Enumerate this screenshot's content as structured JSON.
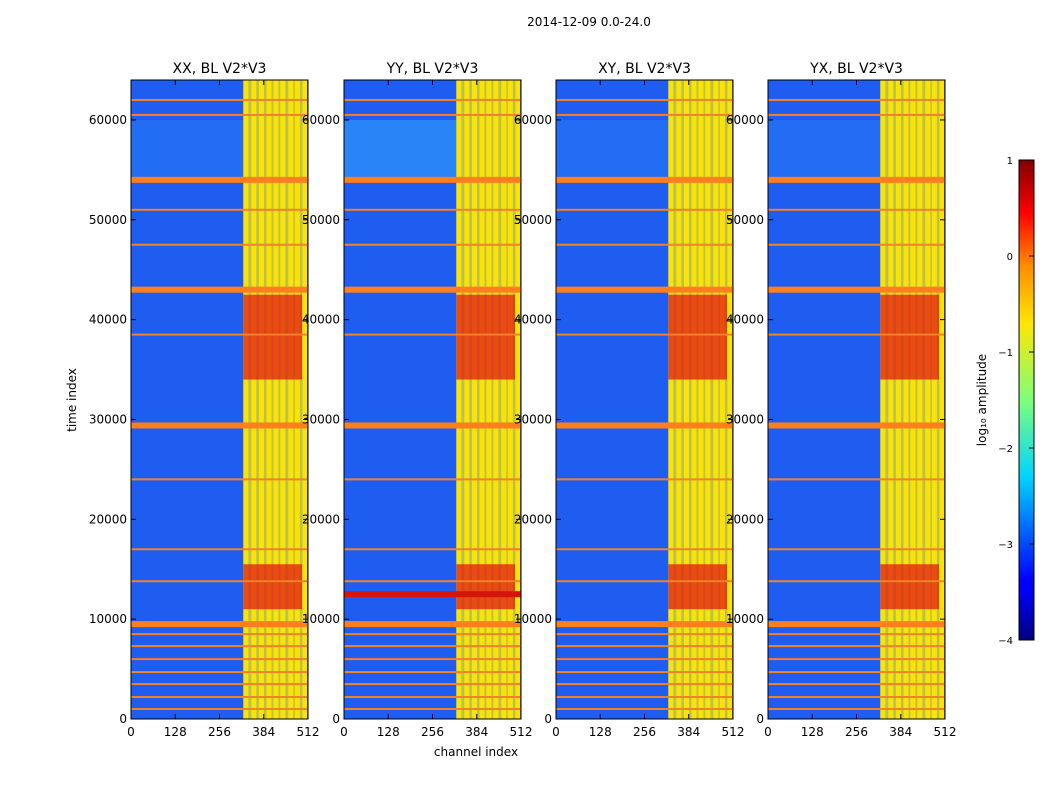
{
  "figure": {
    "suptitle": "2014-12-09 0.0-24.0",
    "xlabel": "channel index",
    "ylabel": "time index"
  },
  "chart_data": {
    "type": "heatmap",
    "xlim": [
      0,
      512
    ],
    "ylim": [
      0,
      64000
    ],
    "xticks": [
      0,
      128,
      256,
      384,
      512
    ],
    "yticks": [
      0,
      10000,
      20000,
      30000,
      40000,
      50000,
      60000
    ],
    "panels": [
      {
        "title": "XX, BL V2*V3",
        "id": "xx"
      },
      {
        "title": "YY, BL V2*V3",
        "id": "yy"
      },
      {
        "title": "XY, BL V2*V3",
        "id": "xy"
      },
      {
        "title": "YX, BL V2*V3",
        "id": "yx"
      }
    ],
    "bright_band_channels": [
      325,
      512
    ],
    "bright_columns": [
      325,
      348,
      370,
      392,
      412,
      432,
      455,
      474,
      495
    ],
    "flagged_time_rows": [
      1000,
      2200,
      3500,
      4700,
      6000,
      7300,
      8500,
      9500,
      13800,
      17000,
      24000,
      29400,
      38500,
      43000,
      47500,
      51000,
      54000,
      60500,
      62000
    ],
    "strong_flag_rows": [
      9500,
      29400,
      43000,
      54000
    ],
    "hot_time_ranges": [
      [
        11000,
        15500
      ],
      [
        34000,
        42500
      ]
    ],
    "colorbar": {
      "label": "log₁₀ amplitude",
      "range": [
        -4,
        1
      ],
      "ticks": [
        1,
        0,
        -1,
        -2,
        -3,
        -4
      ],
      "tick_labels": [
        "1",
        "0",
        "−1",
        "−2",
        "−3",
        "−4"
      ],
      "colormap": "jet"
    }
  }
}
